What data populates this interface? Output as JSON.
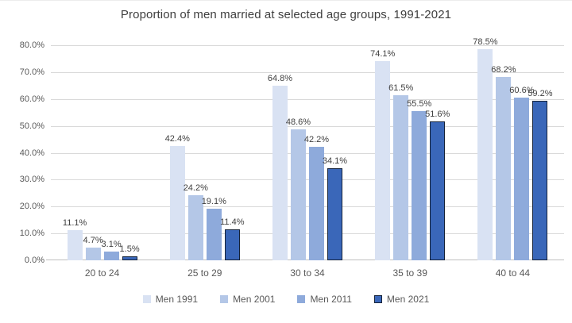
{
  "chart_data": {
    "type": "bar",
    "title": "Proportion of men married at selected age groups, 1991-2021",
    "categories": [
      "20 to 24",
      "25 to 29",
      "30 to 34",
      "35 to 39",
      "40 to 44"
    ],
    "series": [
      {
        "name": "Men 1991",
        "color": "#d9e2f3",
        "values": [
          11.1,
          42.4,
          64.8,
          74.1,
          78.5
        ]
      },
      {
        "name": "Men 2001",
        "color": "#b4c7e7",
        "values": [
          4.7,
          24.2,
          48.6,
          61.5,
          68.2
        ]
      },
      {
        "name": "Men 2011",
        "color": "#8eaadb",
        "values": [
          3.1,
          19.1,
          42.2,
          55.5,
          60.6
        ]
      },
      {
        "name": "Men 2021",
        "color": "#3a67b9",
        "border_color": "#152238",
        "values": [
          1.5,
          11.4,
          34.1,
          51.6,
          59.2
        ]
      }
    ],
    "data_label_suffix": "%",
    "y_axis": {
      "min": 0,
      "max": 80,
      "step": 10,
      "tick_labels": [
        "0.0%",
        "10.0%",
        "20.0%",
        "30.0%",
        "40.0%",
        "50.0%",
        "60.0%",
        "70.0%",
        "80.0%"
      ]
    },
    "grid": true,
    "legend_position": "bottom"
  },
  "colors": {
    "background": "#ffffff",
    "title_text": "#3f3f3f",
    "axis_text": "#595959",
    "data_label_text": "#404040",
    "gridline": "#d9d9d9",
    "axis_line": "#bfbfbf"
  }
}
